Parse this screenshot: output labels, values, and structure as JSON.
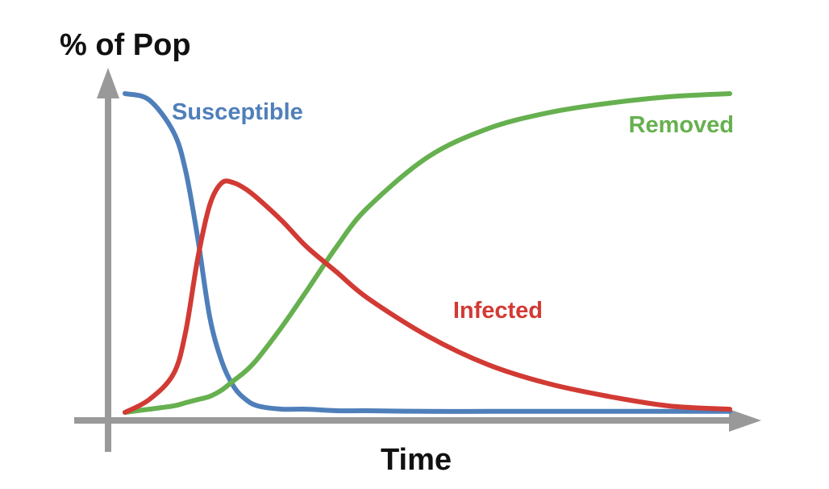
{
  "colors": {
    "axis": "#999999",
    "susceptible": "#4f7fba",
    "infected": "#d23a34",
    "removed": "#66b04f",
    "text": "#111111"
  },
  "chart_data": {
    "type": "line",
    "title": "",
    "xlabel": "Time",
    "ylabel": "% of Pop",
    "xlim": [
      0,
      100
    ],
    "ylim": [
      0,
      100
    ],
    "grid": false,
    "axis_ticks": false,
    "x": [
      0,
      4,
      8,
      10,
      12,
      14,
      16,
      18,
      20,
      22,
      26,
      30,
      35,
      40,
      50,
      60,
      70,
      80,
      90,
      100
    ],
    "series": [
      {
        "name": "Susceptible",
        "color": "#4f7fba",
        "values": [
          100,
          98,
          88,
          76,
          55,
          30,
          16,
          8,
          4,
          2,
          1,
          1,
          0.5,
          0.5,
          0.3,
          0.3,
          0.3,
          0.3,
          0.3,
          0.3
        ]
      },
      {
        "name": "Infected",
        "color": "#d23a34",
        "values": [
          0,
          4,
          12,
          25,
          48,
          65,
          72,
          72,
          70,
          67,
          60,
          52,
          44,
          36,
          24,
          15,
          9,
          5,
          2,
          1
        ]
      },
      {
        "name": "Removed",
        "color": "#66b04f",
        "values": [
          0,
          1,
          2,
          3,
          4,
          5,
          7,
          10,
          13,
          17,
          27,
          38,
          52,
          64,
          80,
          89,
          94,
          97,
          99,
          100
        ]
      }
    ]
  }
}
